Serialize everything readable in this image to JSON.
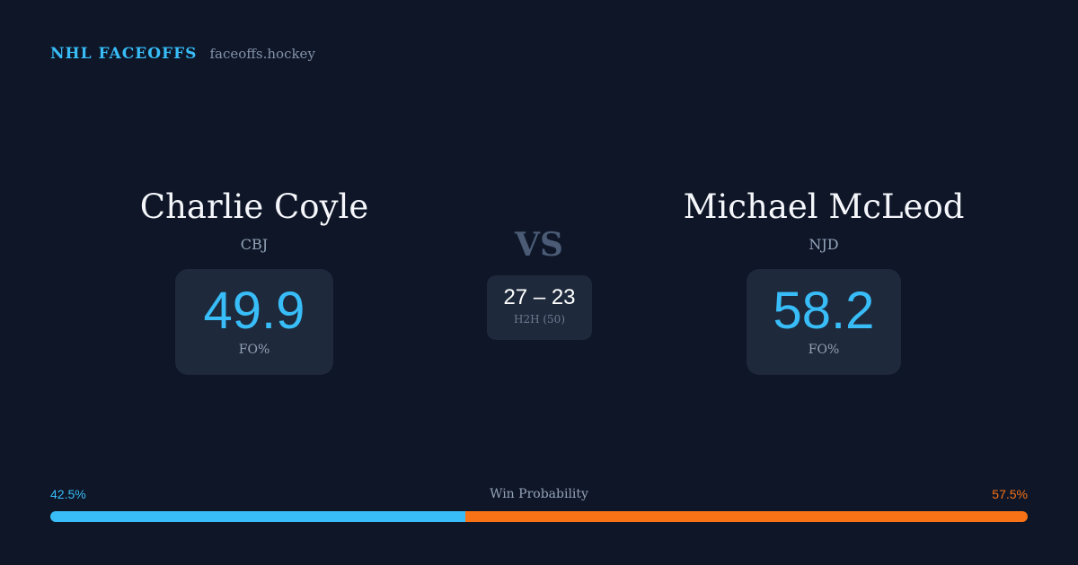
{
  "header": {
    "title": "NHL FACEOFFS",
    "site": "faceoffs.hockey"
  },
  "players": [
    {
      "name": "Charlie Coyle",
      "team": "CBJ",
      "fo_pct": "49.9",
      "fo_label": "FO%"
    },
    {
      "name": "Michael McLeod",
      "team": "NJD",
      "fo_pct": "58.2",
      "fo_label": "FO%"
    }
  ],
  "vs": "VS",
  "h2h": {
    "score": "27 – 23",
    "label": "H2H (50)"
  },
  "win_probability": {
    "label": "Win Probability",
    "left": "42.5%",
    "right": "57.5%",
    "left_value": 42.5,
    "right_value": 57.5
  },
  "colors": {
    "left": "#38bdf8",
    "right": "#f97316",
    "background": "#0e1628",
    "card": "#1e293b"
  }
}
